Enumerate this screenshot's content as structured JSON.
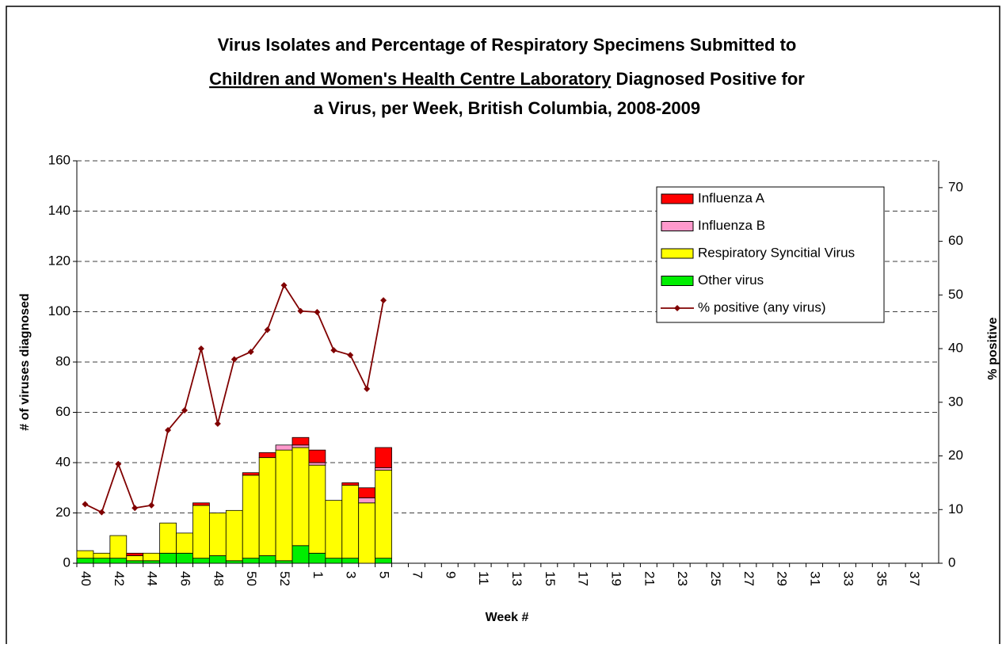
{
  "chart_data": {
    "type": "bar-line",
    "title": [
      "Virus Isolates and Percentage of Respiratory Specimens Submitted to",
      "Children and Women's Health Centre Laboratory",
      " Diagnosed Positive for",
      "a Virus, per Week, British Columbia, 2008-2009"
    ],
    "x_label": "Week #",
    "y_label": "# of viruses diagnosed",
    "y2_label": "% positive",
    "categories": [
      "40",
      null,
      "42",
      null,
      "44",
      null,
      "46",
      null,
      "48",
      null,
      "50",
      null,
      "52",
      null,
      "1",
      null,
      "3",
      null,
      "5",
      null,
      "7",
      null,
      "9",
      null,
      "11",
      null,
      "13",
      null,
      "15",
      null,
      "17",
      null,
      "19",
      null,
      "21",
      null,
      "23",
      null,
      "25",
      null,
      "27",
      null,
      "29",
      null,
      "31",
      null,
      "33",
      null,
      "35",
      null,
      "37",
      null
    ],
    "series": [
      {
        "name": "Influenza A",
        "color": "#ff0000",
        "type": "bar",
        "values": [
          0,
          0,
          0,
          1,
          0,
          0,
          0,
          1,
          0,
          0,
          1,
          2,
          0,
          3,
          5,
          0,
          1,
          4,
          8,
          null,
          null,
          null,
          null,
          null,
          null,
          null,
          null,
          null,
          null,
          null,
          null,
          null,
          null,
          null,
          null,
          null,
          null,
          null,
          null,
          null,
          null,
          null,
          null,
          null,
          null,
          null,
          null,
          null,
          null,
          null,
          null,
          null
        ]
      },
      {
        "name": "Influenza B",
        "color": "#ff99cc",
        "type": "bar",
        "values": [
          0,
          0,
          0,
          0,
          0,
          0,
          0,
          0,
          0,
          0,
          0,
          0,
          2,
          1,
          1,
          0,
          0,
          2,
          1,
          null,
          null,
          null,
          null,
          null,
          null,
          null,
          null,
          null,
          null,
          null,
          null,
          null,
          null,
          null,
          null,
          null,
          null,
          null,
          null,
          null,
          null,
          null,
          null,
          null,
          null,
          null,
          null,
          null,
          null,
          null,
          null,
          null
        ]
      },
      {
        "name": "Respiratory Syncitial Virus",
        "color": "#ffff00",
        "type": "bar",
        "values": [
          3,
          2,
          9,
          2,
          3,
          12,
          8,
          21,
          17,
          20,
          33,
          39,
          44,
          39,
          35,
          23,
          29,
          24,
          35,
          null,
          null,
          null,
          null,
          null,
          null,
          null,
          null,
          null,
          null,
          null,
          null,
          null,
          null,
          null,
          null,
          null,
          null,
          null,
          null,
          null,
          null,
          null,
          null,
          null,
          null,
          null,
          null,
          null,
          null,
          null,
          null,
          null
        ]
      },
      {
        "name": "Other virus",
        "color": "#00ee00",
        "type": "bar",
        "values": [
          2,
          2,
          2,
          1,
          1,
          4,
          4,
          2,
          3,
          1,
          2,
          3,
          1,
          7,
          4,
          2,
          2,
          0,
          2,
          null,
          null,
          null,
          null,
          null,
          null,
          null,
          null,
          null,
          null,
          null,
          null,
          null,
          null,
          null,
          null,
          null,
          null,
          null,
          null,
          null,
          null,
          null,
          null,
          null,
          null,
          null,
          null,
          null,
          null,
          null,
          null,
          null
        ]
      },
      {
        "name": "% positive (any virus)",
        "color": "#800000",
        "type": "line",
        "axis": "y2",
        "values": [
          11,
          9.5,
          18.5,
          10.3,
          10.8,
          24.8,
          28.5,
          40,
          26,
          38,
          39.4,
          43.5,
          51.8,
          47,
          46.8,
          39.7,
          38.8,
          32.5,
          49,
          null,
          null,
          null,
          null,
          null,
          null,
          null,
          null,
          null,
          null,
          null,
          null,
          null,
          null,
          null,
          null,
          null,
          null,
          null,
          null,
          null,
          null,
          null,
          null,
          null,
          null,
          null,
          null,
          null,
          null,
          null,
          null,
          null
        ]
      }
    ],
    "ylim": [
      0,
      160
    ],
    "yticks": [
      0,
      20,
      40,
      60,
      80,
      100,
      120,
      140,
      160
    ],
    "y2lim": [
      0,
      75
    ],
    "y2ticks": [
      0,
      10,
      20,
      30,
      40,
      50,
      60,
      70
    ],
    "grid": true,
    "legend": "upper right"
  }
}
